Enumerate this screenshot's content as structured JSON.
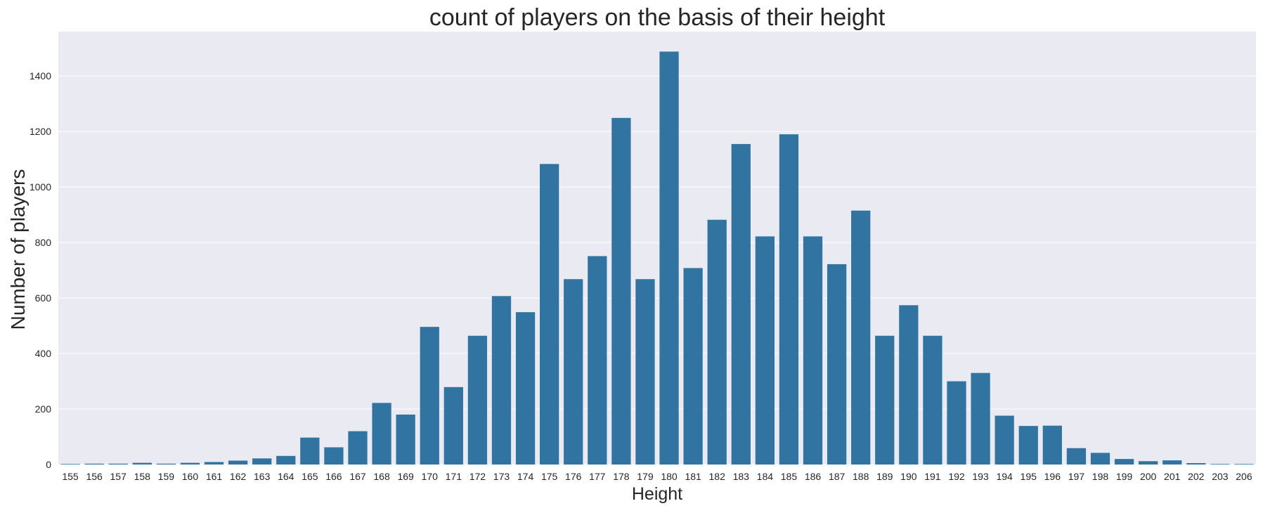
{
  "chart_data": {
    "type": "bar",
    "title": "count of players on the basis of their height",
    "xlabel": "Height",
    "ylabel": "Number of players",
    "categories": [
      "155",
      "156",
      "157",
      "158",
      "159",
      "160",
      "161",
      "162",
      "163",
      "164",
      "165",
      "166",
      "167",
      "168",
      "169",
      "170",
      "171",
      "172",
      "173",
      "174",
      "175",
      "176",
      "177",
      "178",
      "179",
      "180",
      "181",
      "182",
      "183",
      "184",
      "185",
      "186",
      "187",
      "188",
      "189",
      "190",
      "191",
      "192",
      "193",
      "194",
      "195",
      "196",
      "197",
      "198",
      "199",
      "200",
      "201",
      "202",
      "203",
      "206"
    ],
    "values": [
      2,
      3,
      3,
      6,
      3,
      6,
      9,
      14,
      22,
      31,
      97,
      62,
      120,
      222,
      180,
      496,
      279,
      464,
      607,
      549,
      1083,
      668,
      751,
      1249,
      668,
      1488,
      708,
      882,
      1155,
      822,
      1190,
      822,
      722,
      915,
      464,
      574,
      464,
      300,
      330,
      176,
      139,
      140,
      59,
      42,
      20,
      12,
      15,
      5,
      2,
      2
    ],
    "yticks": [
      0,
      200,
      400,
      600,
      800,
      1000,
      1200,
      1400
    ],
    "ylim": [
      0,
      1560
    ],
    "grid": true,
    "colors": {
      "bar": "#3274a1",
      "background": "#eaeaf2",
      "grid": "#ffffff",
      "text": "#262626"
    }
  }
}
